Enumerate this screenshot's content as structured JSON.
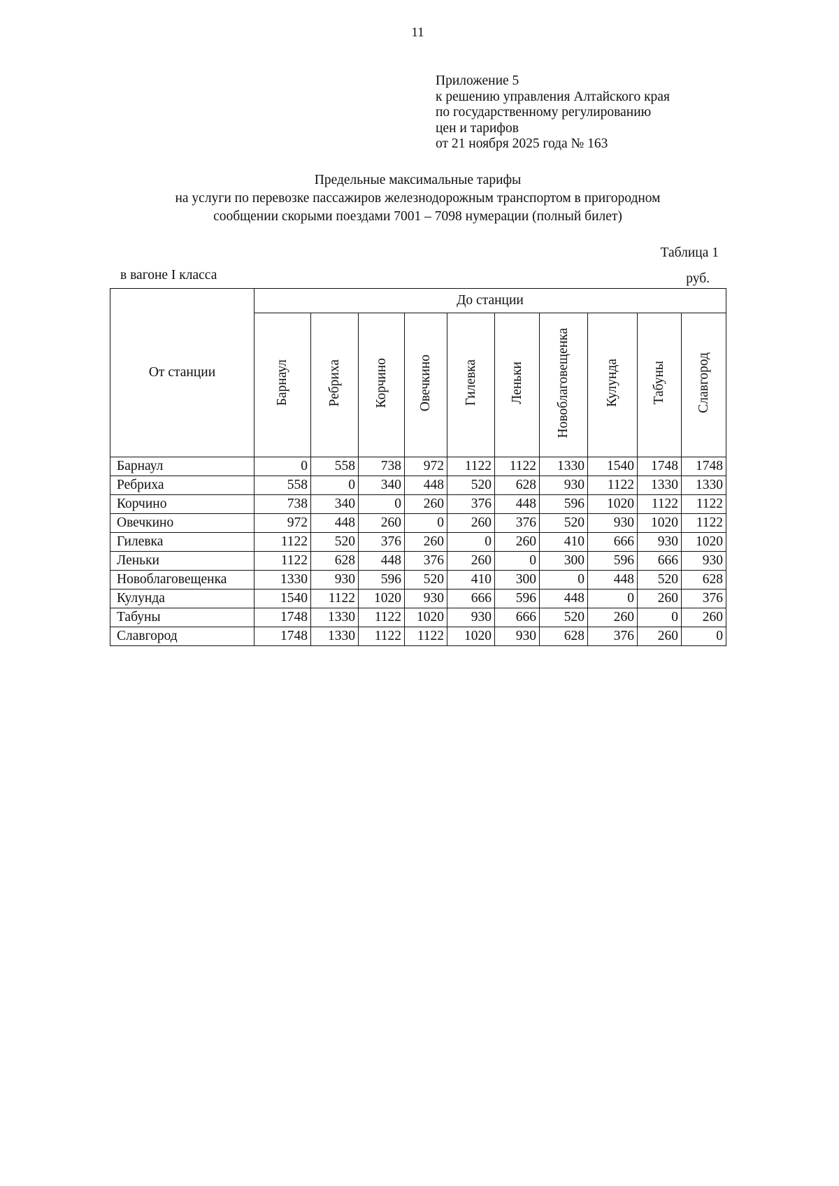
{
  "page_number": "11",
  "appendix": [
    "Приложение 5",
    "к решению управления Алтайского края",
    "по государственному регулированию",
    "цен и тарифов",
    "от 21 ноября 2025 года № 163"
  ],
  "title": [
    "Предельные максимальные тарифы",
    "на услуги по перевозке пассажиров железнодорожным транспортом в пригородном",
    "сообщении скорыми поездами 7001 – 7098 нумерации (полный билет)"
  ],
  "table_number": "Таблица 1",
  "wagon_class": "в вагоне I класса",
  "unit": "руб.",
  "table": {
    "from_header": "От станции",
    "to_header": "До станции",
    "columns": [
      "Барнаул",
      "Ребриха",
      "Корчино",
      "Овечкино",
      "Гилевка",
      "Леньки",
      "Новоблаговещенка",
      "Кулунда",
      "Табуны",
      "Славгород"
    ],
    "rows": [
      {
        "station": "Барнаул",
        "values": [
          "0",
          "558",
          "738",
          "972",
          "1122",
          "1122",
          "1330",
          "1540",
          "1748",
          "1748"
        ]
      },
      {
        "station": "Ребриха",
        "values": [
          "558",
          "0",
          "340",
          "448",
          "520",
          "628",
          "930",
          "1122",
          "1330",
          "1330"
        ]
      },
      {
        "station": "Корчино",
        "values": [
          "738",
          "340",
          "0",
          "260",
          "376",
          "448",
          "596",
          "1020",
          "1122",
          "1122"
        ]
      },
      {
        "station": "Овечкино",
        "values": [
          "972",
          "448",
          "260",
          "0",
          "260",
          "376",
          "520",
          "930",
          "1020",
          "1122"
        ]
      },
      {
        "station": "Гилевка",
        "values": [
          "1122",
          "520",
          "376",
          "260",
          "0",
          "260",
          "410",
          "666",
          "930",
          "1020"
        ]
      },
      {
        "station": "Леньки",
        "values": [
          "1122",
          "628",
          "448",
          "376",
          "260",
          "0",
          "300",
          "596",
          "666",
          "930"
        ]
      },
      {
        "station": "Новоблаговещенка",
        "values": [
          "1330",
          "930",
          "596",
          "520",
          "410",
          "300",
          "0",
          "448",
          "520",
          "628"
        ]
      },
      {
        "station": "Кулунда",
        "values": [
          "1540",
          "1122",
          "1020",
          "930",
          "666",
          "596",
          "448",
          "0",
          "260",
          "376"
        ]
      },
      {
        "station": "Табуны",
        "values": [
          "1748",
          "1330",
          "1122",
          "1020",
          "930",
          "666",
          "520",
          "260",
          "0",
          "260"
        ]
      },
      {
        "station": "Славгород",
        "values": [
          "1748",
          "1330",
          "1122",
          "1122",
          "1020",
          "930",
          "628",
          "376",
          "260",
          "0"
        ]
      }
    ]
  }
}
